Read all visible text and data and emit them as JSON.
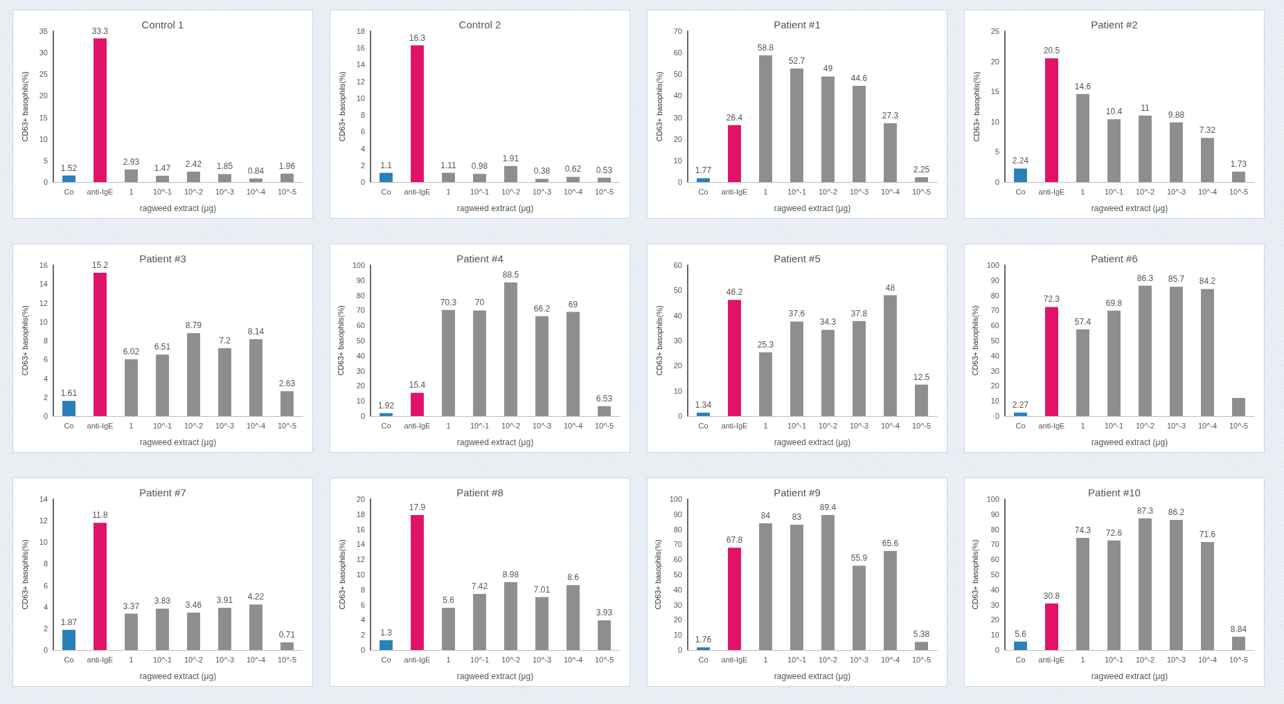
{
  "chart_data": [
    {
      "type": "bar",
      "title": "Control 1",
      "xlabel": "ragweed extract (μg)",
      "ylabel": "CD63+ basophils(%)",
      "categories": [
        "Co",
        "anti-IgE",
        "1",
        "10^-1",
        "10^-2",
        "10^-3",
        "10^-4",
        "10^-5"
      ],
      "values": [
        1.52,
        33.3,
        2.93,
        1.47,
        2.42,
        1.85,
        0.84,
        1.96
      ],
      "colors": [
        "#2a80b9",
        "#e0126a",
        "#8e8e8e",
        "#8e8e8e",
        "#8e8e8e",
        "#8e8e8e",
        "#8e8e8e",
        "#8e8e8e"
      ],
      "ylim": [
        0,
        35
      ],
      "yticks": [
        0,
        5,
        10,
        15,
        20,
        25,
        30,
        35
      ],
      "data_labels": true
    },
    {
      "type": "bar",
      "title": "Control 2",
      "xlabel": "ragweed extract (μg)",
      "ylabel": "CD63+ basophils(%)",
      "categories": [
        "Co",
        "anti-IgE",
        "1",
        "10^-1",
        "10^-2",
        "10^-3",
        "10^-4",
        "10^-5"
      ],
      "values": [
        1.1,
        16.3,
        1.11,
        0.98,
        1.91,
        0.38,
        0.62,
        0.53
      ],
      "colors": [
        "#2a80b9",
        "#e0126a",
        "#8e8e8e",
        "#8e8e8e",
        "#8e8e8e",
        "#8e8e8e",
        "#8e8e8e",
        "#8e8e8e"
      ],
      "ylim": [
        0,
        18
      ],
      "yticks": [
        0,
        2,
        4,
        6,
        8,
        10,
        12,
        14,
        16,
        18
      ],
      "data_labels": true
    },
    {
      "type": "bar",
      "title": "Patient #1",
      "xlabel": "ragweed extract (μg)",
      "ylabel": "CD63+ basophils(%)",
      "categories": [
        "Co",
        "anti-IgE",
        "1",
        "10^-1",
        "10^-2",
        "10^-3",
        "10^-4",
        "10^-5"
      ],
      "values": [
        1.77,
        26.4,
        58.8,
        52.7,
        49,
        44.6,
        27.3,
        2.25
      ],
      "colors": [
        "#2a80b9",
        "#e0126a",
        "#8e8e8e",
        "#8e8e8e",
        "#8e8e8e",
        "#8e8e8e",
        "#8e8e8e",
        "#8e8e8e"
      ],
      "ylim": [
        0,
        70
      ],
      "yticks": [
        0,
        10,
        20,
        30,
        40,
        50,
        60,
        70
      ],
      "data_labels": true
    },
    {
      "type": "bar",
      "title": "Patient #2",
      "xlabel": "ragweed extract (μg)",
      "ylabel": "CD63+ basophils(%)",
      "categories": [
        "Co",
        "anti-IgE",
        "1",
        "10^-1",
        "10^-2",
        "10^-3",
        "10^-4",
        "10^-5"
      ],
      "values": [
        2.24,
        20.5,
        14.6,
        10.4,
        11,
        9.88,
        7.32,
        1.73
      ],
      "colors": [
        "#2a80b9",
        "#e0126a",
        "#8e8e8e",
        "#8e8e8e",
        "#8e8e8e",
        "#8e8e8e",
        "#8e8e8e",
        "#8e8e8e"
      ],
      "ylim": [
        0,
        25
      ],
      "yticks": [
        0,
        5,
        10,
        15,
        20,
        25
      ],
      "data_labels": true
    },
    {
      "type": "bar",
      "title": "Patient #3",
      "xlabel": "ragweed extract (μg)",
      "ylabel": "CD63+ basophils(%)",
      "categories": [
        "Co",
        "anti-IgE",
        "1",
        "10^-1",
        "10^-2",
        "10^-3",
        "10^-4",
        "10^-5"
      ],
      "values": [
        1.61,
        15.2,
        6.02,
        6.51,
        8.79,
        7.2,
        8.14,
        2.63
      ],
      "colors": [
        "#2a80b9",
        "#e0126a",
        "#8e8e8e",
        "#8e8e8e",
        "#8e8e8e",
        "#8e8e8e",
        "#8e8e8e",
        "#8e8e8e"
      ],
      "ylim": [
        0,
        16
      ],
      "yticks": [
        0,
        2,
        4,
        6,
        8,
        10,
        12,
        14,
        16
      ],
      "data_labels": true
    },
    {
      "type": "bar",
      "title": "Patient #4",
      "xlabel": "ragweed extract (μg)",
      "ylabel": "CD63+ basophils(%)",
      "categories": [
        "Co",
        "anti-IgE",
        "1",
        "10^-1",
        "10^-2",
        "10^-3",
        "10^-4",
        "10^-5"
      ],
      "values": [
        1.92,
        15.4,
        70.3,
        70,
        88.5,
        66.2,
        69,
        6.53
      ],
      "colors": [
        "#2a80b9",
        "#e0126a",
        "#8e8e8e",
        "#8e8e8e",
        "#8e8e8e",
        "#8e8e8e",
        "#8e8e8e",
        "#8e8e8e"
      ],
      "ylim": [
        0,
        100
      ],
      "yticks": [
        0,
        10,
        20,
        30,
        40,
        50,
        60,
        70,
        80,
        90,
        100
      ],
      "data_labels": true
    },
    {
      "type": "bar",
      "title": "Patient #5",
      "xlabel": "ragweed extract (μg)",
      "ylabel": "CD63+ basophils(%)",
      "categories": [
        "Co",
        "anti-IgE",
        "1",
        "10^-1",
        "10^-2",
        "10^-3",
        "10^-4",
        "10^-5"
      ],
      "values": [
        1.34,
        46.2,
        25.3,
        37.6,
        34.3,
        37.8,
        48,
        12.5
      ],
      "colors": [
        "#2a80b9",
        "#e0126a",
        "#8e8e8e",
        "#8e8e8e",
        "#8e8e8e",
        "#8e8e8e",
        "#8e8e8e",
        "#8e8e8e"
      ],
      "ylim": [
        0,
        60
      ],
      "yticks": [
        0,
        10,
        20,
        30,
        40,
        50,
        60
      ],
      "data_labels": true
    },
    {
      "type": "bar",
      "title": "Patient #6",
      "xlabel": "ragweed extract (μg)",
      "ylabel": "CD63+ basophils(%)",
      "categories": [
        "Co",
        "anti-IgE",
        "1",
        "10^-1",
        "10^-2",
        "10^-3",
        "10^-4",
        "10^-5"
      ],
      "values": [
        2.27,
        72.3,
        57.4,
        69.8,
        86.3,
        85.7,
        84.2,
        12
      ],
      "value_labels": [
        "2.27",
        "72.3",
        "57.4",
        "69.8",
        "86.3",
        "85.7",
        "84.2",
        null
      ],
      "colors": [
        "#2a80b9",
        "#e0126a",
        "#8e8e8e",
        "#8e8e8e",
        "#8e8e8e",
        "#8e8e8e",
        "#8e8e8e",
        "#8e8e8e"
      ],
      "ylim": [
        0,
        100
      ],
      "yticks": [
        0,
        10,
        20,
        30,
        40,
        50,
        60,
        70,
        80,
        90,
        100
      ]
    },
    {
      "type": "bar",
      "title": "Patient #7",
      "xlabel": "ragweed extract (μg)",
      "ylabel": "CD63+ basophils(%)",
      "categories": [
        "Co",
        "anti-IgE",
        "1",
        "10^-1",
        "10^-2",
        "10^-3",
        "10^-4",
        "10^-5"
      ],
      "values": [
        1.87,
        11.8,
        3.37,
        3.83,
        3.46,
        3.91,
        4.22,
        0.71
      ],
      "colors": [
        "#2a80b9",
        "#e0126a",
        "#8e8e8e",
        "#8e8e8e",
        "#8e8e8e",
        "#8e8e8e",
        "#8e8e8e",
        "#8e8e8e"
      ],
      "ylim": [
        0,
        14
      ],
      "yticks": [
        0,
        2,
        4,
        6,
        8,
        10,
        12,
        14
      ],
      "data_labels": true
    },
    {
      "type": "bar",
      "title": "Patient #8",
      "xlabel": "ragweed extract (μg)",
      "ylabel": "CD63+ basophils(%)",
      "categories": [
        "Co",
        "anti-IgE",
        "1",
        "10^-1",
        "10^-2",
        "10^-3",
        "10^-4",
        "10^-5"
      ],
      "values": [
        1.3,
        17.9,
        5.6,
        7.42,
        8.98,
        7.01,
        8.6,
        3.93
      ],
      "colors": [
        "#2a80b9",
        "#e0126a",
        "#8e8e8e",
        "#8e8e8e",
        "#8e8e8e",
        "#8e8e8e",
        "#8e8e8e",
        "#8e8e8e"
      ],
      "ylim": [
        0,
        20
      ],
      "yticks": [
        0,
        2,
        4,
        6,
        8,
        10,
        12,
        14,
        16,
        18,
        20
      ],
      "data_labels": true
    },
    {
      "type": "bar",
      "title": "Patient #9",
      "xlabel": "ragweed extract (μg)",
      "ylabel": "CD63+ basophils(%)",
      "categories": [
        "Co",
        "anti-IgE",
        "1",
        "10^-1",
        "10^-2",
        "10^-3",
        "10^-4",
        "10^-5"
      ],
      "values": [
        1.76,
        67.8,
        84,
        83,
        89.4,
        55.9,
        65.6,
        5.38
      ],
      "colors": [
        "#2a80b9",
        "#e0126a",
        "#8e8e8e",
        "#8e8e8e",
        "#8e8e8e",
        "#8e8e8e",
        "#8e8e8e",
        "#8e8e8e"
      ],
      "ylim": [
        0,
        100
      ],
      "yticks": [
        0,
        10,
        20,
        30,
        40,
        50,
        60,
        70,
        80,
        90,
        100
      ],
      "data_labels": true
    },
    {
      "type": "bar",
      "title": "Patient #10",
      "xlabel": "ragweed extract (μg)",
      "ylabel": "CD63+ basophils(%)",
      "categories": [
        "Co",
        "anti-IgE",
        "1",
        "10^-1",
        "10^-2",
        "10^-3",
        "10^-4",
        "10^-5"
      ],
      "values": [
        5.6,
        30.8,
        74.3,
        72.6,
        87.3,
        86.2,
        71.6,
        8.84
      ],
      "colors": [
        "#2a80b9",
        "#e0126a",
        "#8e8e8e",
        "#8e8e8e",
        "#8e8e8e",
        "#8e8e8e",
        "#8e8e8e",
        "#8e8e8e"
      ],
      "ylim": [
        0,
        100
      ],
      "yticks": [
        0,
        10,
        20,
        30,
        40,
        50,
        60,
        70,
        80,
        90,
        100
      ],
      "data_labels": true
    }
  ]
}
